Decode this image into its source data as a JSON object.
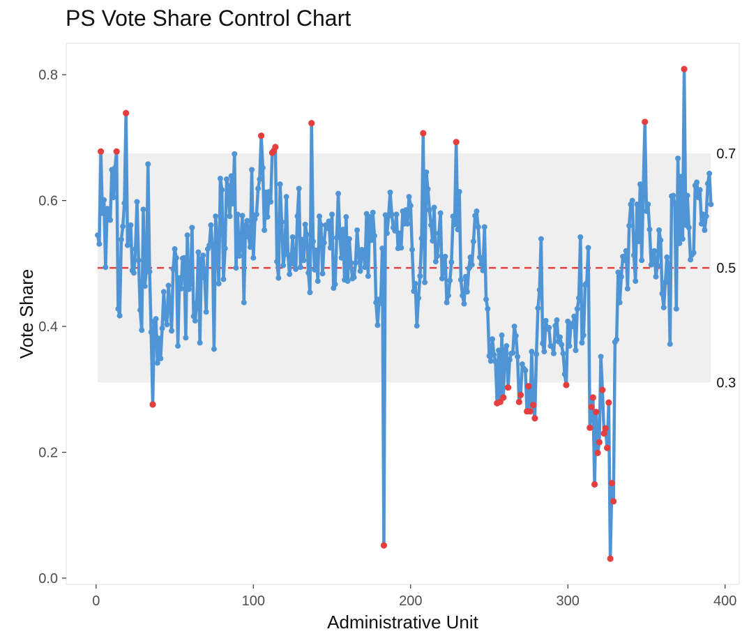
{
  "chart_data": {
    "type": "line",
    "title": "PS Vote Share Control Chart",
    "xlabel": "Administrative Unit",
    "ylabel": "Vote Share",
    "xlim": [
      -19,
      409
    ],
    "ylim": [
      -0.01,
      0.85
    ],
    "xticks": [
      0,
      100,
      200,
      300,
      400
    ],
    "yticks": [
      0.0,
      0.2,
      0.4,
      0.6,
      0.8
    ],
    "xtick_labels": [
      "0",
      "100",
      "200",
      "300",
      "400"
    ],
    "ytick_labels": [
      "0.0",
      "0.2",
      "0.4",
      "0.6",
      "0.8"
    ],
    "grid": false,
    "control_limits": {
      "center": 0.493,
      "lower": 0.311,
      "upper": 0.675,
      "labels": {
        "upper": "0.7",
        "center": "0.5",
        "lower": "0.3"
      }
    },
    "colors": {
      "line": "#4f94d4",
      "point": "#4f94d4",
      "outlier": "#e53e3e",
      "center_line": "#e53e3e",
      "band": "#efefef",
      "panel_border": "#e5e5e5"
    },
    "series": [
      {
        "x_start": 1,
        "values": [
          0.545,
          0.531,
          0.678,
          0.58,
          0.601,
          0.494,
          0.587,
          0.57,
          0.569,
          0.649,
          0.605,
          0.652,
          0.678,
          0.428,
          0.417,
          0.538,
          0.559,
          0.596,
          0.739,
          0.529,
          0.544,
          0.561,
          0.489,
          0.485,
          0.523,
          0.598,
          0.505,
          0.426,
          0.394,
          0.586,
          0.464,
          0.49,
          0.658,
          0.487,
          0.391,
          0.276,
          0.408,
          0.412,
          0.342,
          0.381,
          0.349,
          0.397,
          0.455,
          0.413,
          0.403,
          0.465,
          0.433,
          0.393,
          0.491,
          0.523,
          0.509,
          0.369,
          0.477,
          0.46,
          0.508,
          0.509,
          0.382,
          0.545,
          0.459,
          0.467,
          0.557,
          0.416,
          0.409,
          0.437,
          0.518,
          0.374,
          0.507,
          0.513,
          0.477,
          0.423,
          0.523,
          0.529,
          0.561,
          0.527,
          0.364,
          0.575,
          0.538,
          0.468,
          0.635,
          0.617,
          0.475,
          0.524,
          0.634,
          0.623,
          0.575,
          0.639,
          0.595,
          0.674,
          0.493,
          0.578,
          0.512,
          0.533,
          0.576,
          0.438,
          0.561,
          0.568,
          0.542,
          0.526,
          0.649,
          0.509,
          0.571,
          0.578,
          0.619,
          0.634,
          0.703,
          0.652,
          0.553,
          0.613,
          0.574,
          0.614,
          0.598,
          0.676,
          0.679,
          0.685,
          0.503,
          0.477,
          0.626,
          0.566,
          0.497,
          0.518,
          0.606,
          0.514,
          0.483,
          0.506,
          0.542,
          0.499,
          0.491,
          0.575,
          0.619,
          0.494,
          0.538,
          0.505,
          0.562,
          0.546,
          0.485,
          0.454,
          0.723,
          0.535,
          0.49,
          0.521,
          0.472,
          0.575,
          0.561,
          0.484,
          0.533,
          0.561,
          0.556,
          0.567,
          0.525,
          0.578,
          0.461,
          0.467,
          0.541,
          0.611,
          0.545,
          0.509,
          0.554,
          0.474,
          0.574,
          0.472,
          0.539,
          0.501,
          0.476,
          0.478,
          0.501,
          0.553,
          0.513,
          0.488,
          0.522,
          0.516,
          0.494,
          0.579,
          0.48,
          0.574,
          0.537,
          0.581,
          0.544,
          0.438,
          0.402,
          0.443,
          0.437,
          0.524,
          0.052,
          0.577,
          0.548,
          0.576,
          0.613,
          0.578,
          0.557,
          0.552,
          0.578,
          0.524,
          0.548,
          0.525,
          0.583,
          0.563,
          0.585,
          0.563,
          0.606,
          0.592,
          0.522,
          0.456,
          0.468,
          0.401,
          0.445,
          0.48,
          0.54,
          0.707,
          0.47,
          0.645,
          0.618,
          0.585,
          0.561,
          0.536,
          0.589,
          0.503,
          0.512,
          0.548,
          0.58,
          0.476,
          0.491,
          0.511,
          0.438,
          0.449,
          0.473,
          0.502,
          0.575,
          0.562,
          0.693,
          0.554,
          0.614,
          0.474,
          0.449,
          0.436,
          0.479,
          0.455,
          0.492,
          0.51,
          0.498,
          0.535,
          0.576,
          0.583,
          0.558,
          0.51,
          0.499,
          0.489,
          0.558,
          0.443,
          0.428,
          0.353,
          0.345,
          0.38,
          0.355,
          0.344,
          0.278,
          0.362,
          0.28,
          0.386,
          0.287,
          0.363,
          0.369,
          0.303,
          0.347,
          0.357,
          0.358,
          0.4,
          0.385,
          0.352,
          0.28,
          0.291,
          0.34,
          0.333,
          0.33,
          0.265,
          0.305,
          0.265,
          0.36,
          0.275,
          0.254,
          0.356,
          0.429,
          0.458,
          0.539,
          0.373,
          0.36,
          0.409,
          0.396,
          0.398,
          0.369,
          0.368,
          0.357,
          0.401,
          0.41,
          0.376,
          0.383,
          0.371,
          0.357,
          0.324,
          0.307,
          0.408,
          0.369,
          0.404,
          0.4,
          0.416,
          0.362,
          0.428,
          0.445,
          0.542,
          0.374,
          0.386,
          0.466,
          0.469,
          0.525,
          0.239,
          0.272,
          0.287,
          0.149,
          0.264,
          0.199,
          0.216,
          0.352,
          0.299,
          0.23,
          0.238,
          0.207,
          0.279,
          0.031,
          0.151,
          0.122,
          0.375,
          0.379,
          0.486,
          0.438,
          0.479,
          0.511,
          0.505,
          0.52,
          0.46,
          0.56,
          0.594,
          0.6,
          0.513,
          0.472,
          0.594,
          0.535,
          0.626,
          0.505,
          0.62,
          0.725,
          0.583,
          0.594,
          0.554,
          0.498,
          0.51,
          0.52,
          0.479,
          0.497,
          0.553,
          0.537,
          0.452,
          0.43,
          0.47,
          0.51,
          0.495,
          0.372,
          0.607,
          0.608,
          0.595,
          0.428,
          0.667,
          0.532,
          0.638,
          0.539,
          0.809,
          0.561,
          0.608,
          0.557,
          0.506,
          0.514,
          0.517,
          0.624,
          0.629,
          0.605,
          0.617,
          0.563,
          0.578,
          0.553,
          0.575,
          0.627,
          0.643,
          0.594
        ]
      }
    ]
  }
}
